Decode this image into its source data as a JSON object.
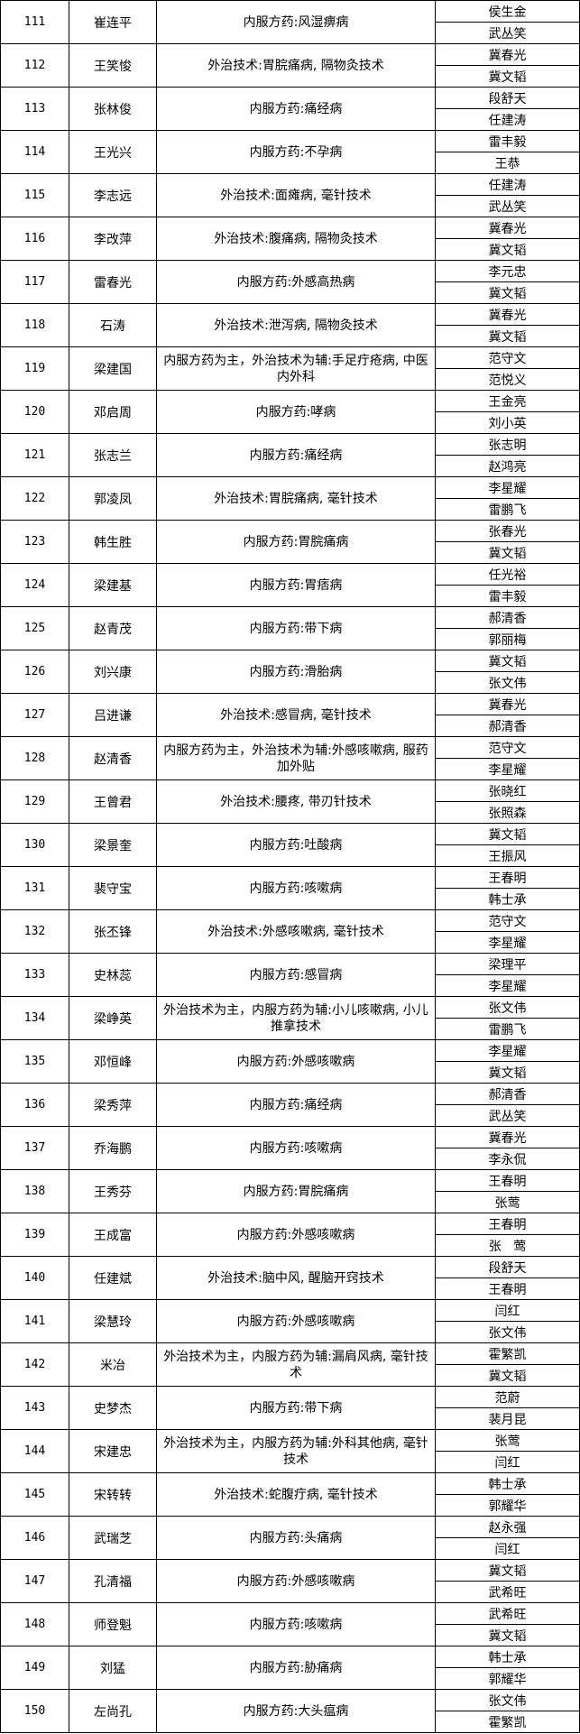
{
  "rows": [
    {
      "no": "111",
      "name": "崔连平",
      "content": "内服方药:风湿痹病",
      "mentors": [
        "侯生金",
        "武丛笑"
      ]
    },
    {
      "no": "112",
      "name": "王笑悛",
      "content": "外治技术:胃脘痛病, 隔物灸技术",
      "mentors": [
        "冀春光",
        "冀文韬"
      ]
    },
    {
      "no": "113",
      "name": "张林俊",
      "content": "内服方药:痛经病",
      "mentors": [
        "段舒天",
        "任建涛"
      ]
    },
    {
      "no": "114",
      "name": "王光兴",
      "content": "内服方药:不孕病",
      "mentors": [
        "雷丰毅",
        "王恭"
      ]
    },
    {
      "no": "115",
      "name": "李志远",
      "content": "外治技术:面瘫病, 毫针技术",
      "mentors": [
        "任建涛",
        "武丛笑"
      ]
    },
    {
      "no": "116",
      "name": "李改萍",
      "content": "外治技术:腹痛病, 隔物灸技术",
      "mentors": [
        "冀春光",
        "冀文韬"
      ]
    },
    {
      "no": "117",
      "name": "雷春光",
      "content": "内服方药:外感高热病",
      "mentors": [
        "李元忠",
        "冀文韬"
      ]
    },
    {
      "no": "118",
      "name": "石涛",
      "content": "外治技术:泄泻病, 隔物灸技术",
      "mentors": [
        "冀春光",
        "冀文韬"
      ]
    },
    {
      "no": "119",
      "name": "梁建国",
      "content": "内服方药为主，外治技术为辅:手足疔疮病, 中医内外科",
      "mentors": [
        "范守文",
        "范悦义"
      ]
    },
    {
      "no": "120",
      "name": "邓启周",
      "content": "内服方药:哮病",
      "mentors": [
        "王金亮",
        "刘小英"
      ]
    },
    {
      "no": "121",
      "name": "张志兰",
      "content": "内服方药:痛经病",
      "mentors": [
        "张志明",
        "赵鸿亮"
      ]
    },
    {
      "no": "122",
      "name": "郭凌凤",
      "content": "外治技术:胃脘痛病, 毫针技术",
      "mentors": [
        "李星耀",
        "雷鹏飞"
      ]
    },
    {
      "no": "123",
      "name": "韩生胜",
      "content": "内服方药:胃脘痛病",
      "mentors": [
        "张春光",
        "冀文韬"
      ]
    },
    {
      "no": "124",
      "name": "梁建基",
      "content": "内服方药:胃痞病",
      "mentors": [
        "任光裕",
        "雷丰毅"
      ]
    },
    {
      "no": "125",
      "name": "赵青茂",
      "content": "内服方药:带下病",
      "mentors": [
        "郝清香",
        "郭丽梅"
      ]
    },
    {
      "no": "126",
      "name": "刘兴康",
      "content": "内服方药:滑胎病",
      "mentors": [
        "冀文韬",
        "张文伟"
      ]
    },
    {
      "no": "127",
      "name": "吕进谦",
      "content": "外治技术:感冒病, 毫针技术",
      "mentors": [
        "冀春光",
        "郝清香"
      ]
    },
    {
      "no": "128",
      "name": "赵清香",
      "content": "内服方药为主，外治技术为辅:外感咳嗽病, 服药加外贴",
      "mentors": [
        "范守文",
        "李星耀"
      ]
    },
    {
      "no": "129",
      "name": "王曾君",
      "content": "外治技术:腰疼, 带刃针技术",
      "mentors": [
        "张晓红",
        "张照森"
      ]
    },
    {
      "no": "130",
      "name": "梁景奎",
      "content": "内服方药:吐酸病",
      "mentors": [
        "冀文韬",
        "王振风"
      ]
    },
    {
      "no": "131",
      "name": "裴守宝",
      "content": "内服方药:咳嗽病",
      "mentors": [
        "王春明",
        "韩士承"
      ]
    },
    {
      "no": "132",
      "name": "张丕锋",
      "content": "外治技术:外感咳嗽病, 毫针技术",
      "mentors": [
        "范守文",
        "李星耀"
      ]
    },
    {
      "no": "133",
      "name": "史林蕊",
      "content": "内服方药:感冒病",
      "mentors": [
        "梁理平",
        "李星耀"
      ]
    },
    {
      "no": "134",
      "name": "梁峥英",
      "content": "外治技术为主，内服方药为辅:小儿咳嗽病, 小儿推拿技术",
      "mentors": [
        "张文伟",
        "雷鹏飞"
      ]
    },
    {
      "no": "135",
      "name": "邓恒峰",
      "content": "内服方药:外感咳嗽病",
      "mentors": [
        "李星耀",
        "冀文韬"
      ]
    },
    {
      "no": "136",
      "name": "梁秀萍",
      "content": "内服方药:痛经病",
      "mentors": [
        "郝清香",
        "武丛笑"
      ]
    },
    {
      "no": "137",
      "name": "乔海鹏",
      "content": "内服方药:咳嗽病",
      "mentors": [
        "冀春光",
        "李永侃"
      ]
    },
    {
      "no": "138",
      "name": "王秀芬",
      "content": "内服方药:胃脘痛病",
      "mentors": [
        "王春明",
        "张莺"
      ]
    },
    {
      "no": "139",
      "name": "王成富",
      "content": "内服方药:外感咳嗽病",
      "mentors": [
        "王春明",
        "张   莺"
      ]
    },
    {
      "no": "140",
      "name": "任建斌",
      "content": "外治技术:脑中风, 醒脑开窍技术",
      "mentors": [
        "段舒天",
        "王春明"
      ]
    },
    {
      "no": "141",
      "name": "梁慧玲",
      "content": "内服方药:外感咳嗽病",
      "mentors": [
        "闫红",
        "张文伟"
      ]
    },
    {
      "no": "142",
      "name": "米冶",
      "content": "外治技术为主，内服方药为辅:漏肩风病, 毫针技术",
      "mentors": [
        "霍繁凯",
        "冀文韬"
      ]
    },
    {
      "no": "143",
      "name": "史梦杰",
      "content": "内服方药:带下病",
      "mentors": [
        "范蔚",
        "裴月昆"
      ]
    },
    {
      "no": "144",
      "name": "宋建忠",
      "content": "外治技术为主，内服方药为辅:外科其他病, 毫针技术",
      "mentors": [
        "张莺",
        "闫红"
      ]
    },
    {
      "no": "145",
      "name": "宋转转",
      "content": "外治技术:蛇腹疔病, 毫针技术",
      "mentors": [
        "韩士承",
        "郭耀华"
      ]
    },
    {
      "no": "146",
      "name": "武瑞芝",
      "content": "内服方药:头痛病",
      "mentors": [
        "赵永强",
        "闫红"
      ]
    },
    {
      "no": "147",
      "name": "孔清福",
      "content": "内服方药:外感咳嗽病",
      "mentors": [
        "冀文韬",
        "武希旺"
      ]
    },
    {
      "no": "148",
      "name": "师登魁",
      "content": "内服方药:咳嗽病",
      "mentors": [
        "武希旺",
        "冀文韬"
      ]
    },
    {
      "no": "149",
      "name": "刘猛",
      "content": "内服方药:胁痛病",
      "mentors": [
        "韩士承",
        "郭耀华"
      ]
    },
    {
      "no": "150",
      "name": "左尚孔",
      "content": "内服方药:大头瘟病",
      "mentors": [
        "张文伟",
        "霍繁凯"
      ]
    }
  ]
}
